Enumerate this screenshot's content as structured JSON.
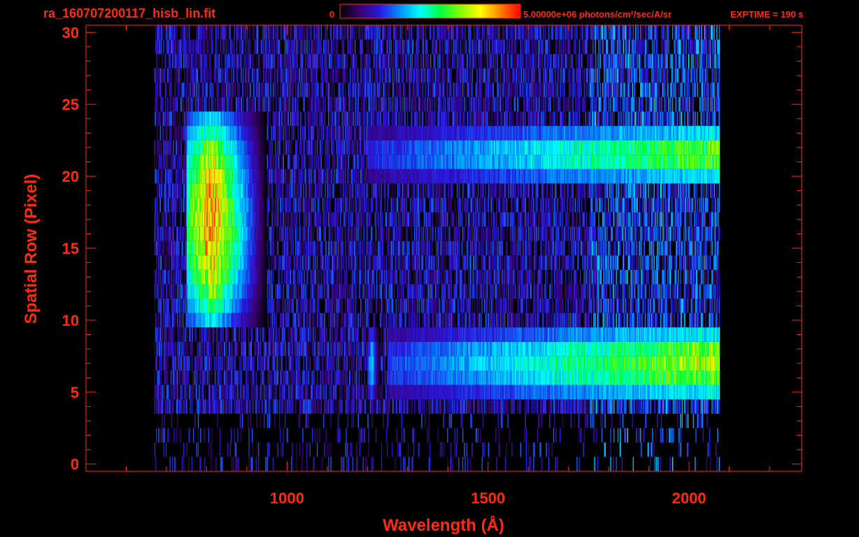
{
  "file_name": "ra_160707200117_hisb_lin.fit",
  "colors": {
    "background": "#000000",
    "label": "#ff2a10",
    "axis": "#ff2a10"
  },
  "chart_data": {
    "type": "heatmap",
    "xlabel": "Wavelength (Å)",
    "ylabel": "Spatial Row (Pixel)",
    "xlim": [
      500,
      2280
    ],
    "ylim": [
      -0.5,
      30.5
    ],
    "x_ticks": [
      1000,
      1500,
      2000
    ],
    "x_tick_labels": [
      "1000",
      "1500",
      "2000"
    ],
    "y_ticks": [
      0,
      5,
      10,
      15,
      20,
      25,
      30
    ],
    "y_tick_labels": [
      "0",
      "5",
      "10",
      "15",
      "20",
      "25",
      "30"
    ],
    "colorbar": {
      "min_label": "0",
      "max_label": "5.00000e+06 photons/cm²/sec/A/sr",
      "colormap": [
        "#000000",
        "#3a0070",
        "#2a18e0",
        "#0090ff",
        "#00ffff",
        "#00ff40",
        "#80ff00",
        "#ffff00",
        "#ff8000",
        "#ff0000"
      ]
    },
    "exptime_label": "EXPTIME = 190 s",
    "data_extent": {
      "wavelength_min": 670,
      "wavelength_max": 2075,
      "row_min": 0,
      "row_max": 30
    },
    "features": [
      {
        "name": "",
        "rows": [
          10,
          24
        ],
        "wavelength": [
          750,
          950
        ],
        "peak_intensity": 0.98
      },
      {
        "name": "",
        "rows": [
          5,
          9
        ],
        "wavelength": [
          1200,
          1230
        ],
        "peak_intensity": 0.45
      },
      {
        "name": "",
        "rows": [
          5,
          9
        ],
        "wavelength": [
          1250,
          2075
        ],
        "peak_intensity": 0.78
      },
      {
        "name": "",
        "rows": [
          20,
          23
        ],
        "wavelength": [
          1200,
          2075
        ],
        "peak_intensity": 0.7
      }
    ]
  }
}
